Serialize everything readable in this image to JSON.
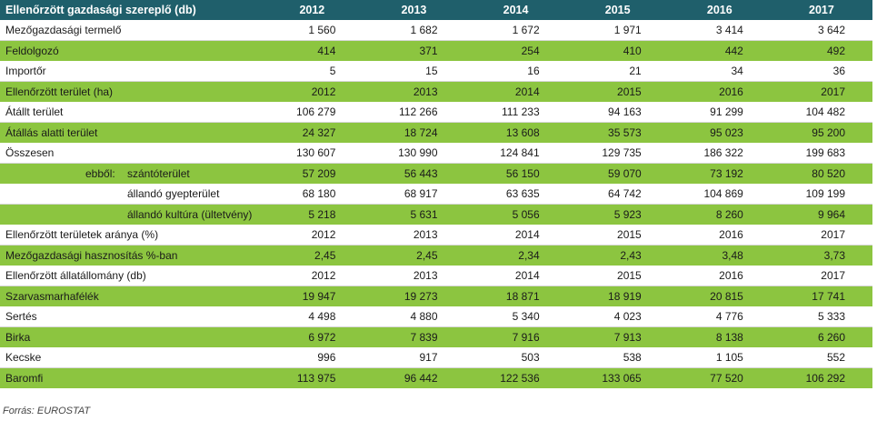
{
  "table": {
    "header": {
      "title": "Ellenőrzött gazdasági szereplő (db)",
      "years": [
        "2012",
        "2013",
        "2014",
        "2015",
        "2016",
        "2017"
      ]
    },
    "rows": [
      {
        "label": "Mezőgazdasági termelő",
        "values": [
          "1 560",
          "1 682",
          "1 672",
          "1 971",
          "3 414",
          "3 642"
        ]
      },
      {
        "label": "Feldolgozó",
        "values": [
          "414",
          "371",
          "254",
          "410",
          "442",
          "492"
        ]
      },
      {
        "label": "Importőr",
        "values": [
          "5",
          "15",
          "16",
          "21",
          "34",
          "36"
        ]
      },
      {
        "label": "Ellenőrzött terület (ha)",
        "values": [
          "2012",
          "2013",
          "2014",
          "2015",
          "2016",
          "2017"
        ]
      },
      {
        "label": "Átállt terület",
        "values": [
          "106 279",
          "112 266",
          "111 233",
          "94 163",
          "91 299",
          "104 482"
        ]
      },
      {
        "label": "Átállás alatti terület",
        "values": [
          "24 327",
          "18 724",
          "13 608",
          "35 573",
          "95 023",
          "95 200"
        ]
      },
      {
        "label": "Összesen",
        "values": [
          "130 607",
          "130 990",
          "124 841",
          "129 735",
          "186 322",
          "199 683"
        ]
      },
      {
        "prefix": "ebből:",
        "label": "szántóterület",
        "values": [
          "57 209",
          "56 443",
          "56 150",
          "59 070",
          "73 192",
          "80 520"
        ]
      },
      {
        "label": "állandó gyepterület",
        "values": [
          "68 180",
          "68 917",
          "63 635",
          "64 742",
          "104 869",
          "109 199"
        ]
      },
      {
        "label": "állandó kultúra (ültetvény)",
        "values": [
          "5 218",
          "5 631",
          "5 056",
          "5 923",
          "8 260",
          "9 964"
        ]
      },
      {
        "label": "Ellenőrzött területek aránya (%)",
        "values": [
          "2012",
          "2013",
          "2014",
          "2015",
          "2016",
          "2017"
        ]
      },
      {
        "label": "Mezőgazdasági hasznosítás %-ban",
        "values": [
          "2,45",
          "2,45",
          "2,34",
          "2,43",
          "3,48",
          "3,73"
        ]
      },
      {
        "label": "Ellenőrzött állatállomány (db)",
        "values": [
          "2012",
          "2013",
          "2014",
          "2015",
          "2016",
          "2017"
        ]
      },
      {
        "label": "Szarvasmarhafélék",
        "values": [
          "19 947",
          "19 273",
          "18 871",
          "18 919",
          "20 815",
          "17 741"
        ]
      },
      {
        "label": "Sertés",
        "values": [
          "4 498",
          "4 880",
          "5 340",
          "4 023",
          "4 776",
          "5 333"
        ]
      },
      {
        "label": "Birka",
        "values": [
          "6 972",
          "7 839",
          "7 916",
          "7 913",
          "8 138",
          "6 260"
        ]
      },
      {
        "label": "Kecske",
        "values": [
          "996",
          "917",
          "503",
          "538",
          "1 105",
          "552"
        ]
      },
      {
        "label": "Baromfi",
        "values": [
          "113 975",
          "96 442",
          "122 536",
          "133 065",
          "77 520",
          "106 292"
        ]
      }
    ]
  },
  "source": "Forrás: EUROSTAT"
}
